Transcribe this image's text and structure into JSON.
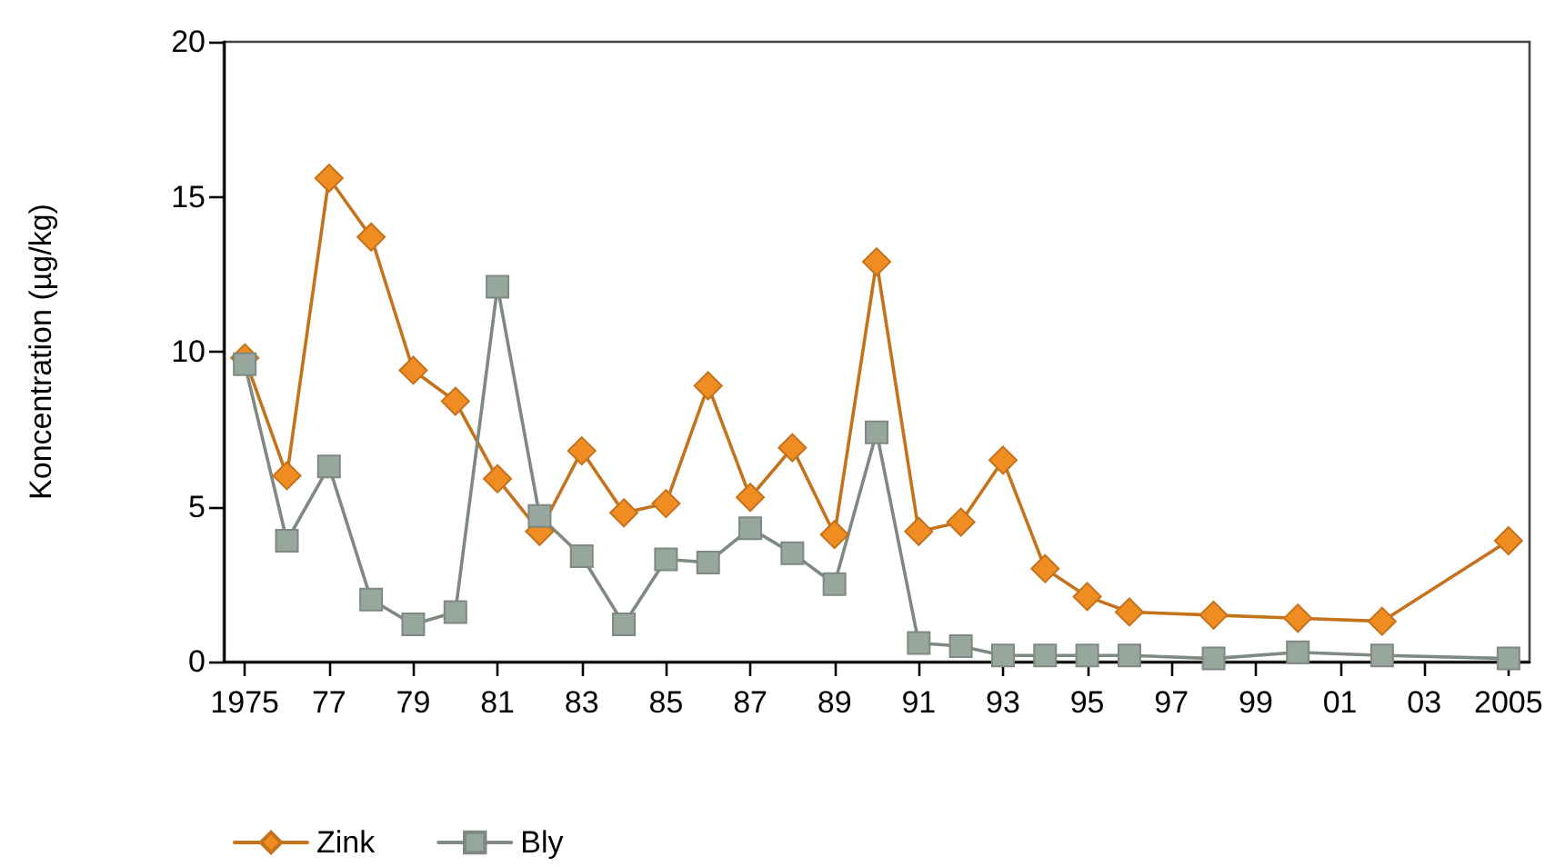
{
  "chart_data": {
    "type": "line",
    "ylabel": "Koncentration (µg/kg)",
    "x": [
      1975,
      1976,
      1977,
      1978,
      1979,
      1980,
      1981,
      1982,
      1983,
      1984,
      1985,
      1986,
      1987,
      1988,
      1989,
      1990,
      1991,
      1992,
      1993,
      1994,
      1995,
      1996,
      1998,
      2000,
      2002,
      2005
    ],
    "series": [
      {
        "name": "Zink",
        "color": "#ef8c22",
        "marker": "diamond",
        "values": [
          9.8,
          6.0,
          15.6,
          13.7,
          9.4,
          8.4,
          5.9,
          4.2,
          6.8,
          4.8,
          5.1,
          8.9,
          5.3,
          6.9,
          4.1,
          12.9,
          4.2,
          4.5,
          6.5,
          3.0,
          2.1,
          1.6,
          1.5,
          1.4,
          1.3,
          3.9
        ]
      },
      {
        "name": "Bly",
        "color": "#98a79d",
        "marker": "square",
        "values": [
          9.6,
          3.9,
          6.3,
          2.0,
          1.2,
          1.6,
          12.1,
          4.7,
          3.4,
          1.2,
          3.3,
          3.2,
          4.3,
          3.5,
          2.5,
          7.4,
          0.6,
          0.5,
          0.2,
          0.2,
          0.2,
          0.2,
          0.1,
          0.3,
          0.2,
          0.1
        ]
      }
    ],
    "xlim": [
      1974.5,
      2005.5
    ],
    "xticks": [
      1975,
      {
        "value": 1977,
        "label": "77"
      },
      {
        "value": 1979,
        "label": "79"
      },
      {
        "value": 1981,
        "label": "81"
      },
      {
        "value": 1983,
        "label": "83"
      },
      {
        "value": 1985,
        "label": "85"
      },
      {
        "value": 1987,
        "label": "87"
      },
      {
        "value": 1989,
        "label": "89"
      },
      {
        "value": 1991,
        "label": "91"
      },
      {
        "value": 1993,
        "label": "93"
      },
      {
        "value": 1995,
        "label": "95"
      },
      {
        "value": 1997,
        "label": "97"
      },
      {
        "value": 1999,
        "label": "99"
      },
      {
        "value": 2001,
        "label": "01"
      },
      {
        "value": 2003,
        "label": "03"
      },
      2005
    ],
    "ylim": [
      0,
      20
    ],
    "yticks": [
      0,
      5,
      10,
      15,
      20
    ],
    "grid": false,
    "legend": "bottom left",
    "line_style": "solid"
  }
}
